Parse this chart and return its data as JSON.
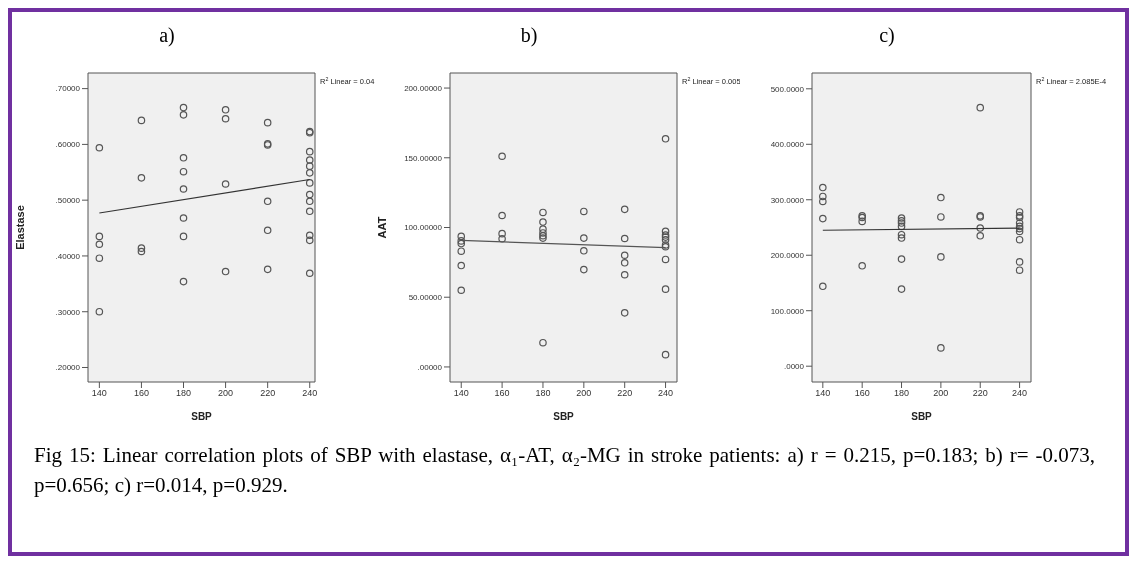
{
  "chart_data": [
    {
      "type": "scatter",
      "title": "a)",
      "xlabel": "SBP",
      "ylabel": "Elastase",
      "annotations": [
        "R$^{2}$ Linear = 0.04"
      ],
      "xlim": [
        134.6,
        242.5
      ],
      "xticks": [
        140,
        160,
        180,
        200,
        220,
        240
      ],
      "ylim": [
        0.174,
        0.728
      ],
      "yticks": [
        {
          "value": 0.2,
          "label": ".20000"
        },
        {
          "value": 0.3,
          "label": ".30000"
        },
        {
          "value": 0.4,
          "label": ".40000"
        },
        {
          "value": 0.5,
          "label": ".50000"
        },
        {
          "value": 0.6,
          "label": ".60000"
        },
        {
          "value": 0.7,
          "label": ".70000"
        }
      ],
      "series": [
        {
          "color": "#555555",
          "marker": "circle",
          "x": [
            140,
            140,
            140,
            140,
            140,
            160,
            160,
            160,
            160,
            180,
            180,
            180,
            180,
            180,
            180,
            180,
            180,
            200,
            200,
            200,
            200,
            220,
            220,
            220,
            220,
            220,
            220,
            240,
            240,
            240,
            240,
            240,
            240,
            240,
            240,
            240,
            240,
            240,
            240,
            240
          ],
          "values": [
            0.594,
            0.435,
            0.421,
            0.396,
            0.3,
            0.643,
            0.54,
            0.414,
            0.408,
            0.666,
            0.653,
            0.576,
            0.551,
            0.52,
            0.468,
            0.435,
            0.354,
            0.662,
            0.646,
            0.529,
            0.372,
            0.639,
            0.601,
            0.599,
            0.498,
            0.446,
            0.376,
            0.623,
            0.621,
            0.587,
            0.572,
            0.561,
            0.549,
            0.531,
            0.51,
            0.498,
            0.48,
            0.437,
            0.428,
            0.369
          ]
        },
        {
          "type": "line",
          "color": "#333333",
          "marker": "none",
          "line_style": "solid",
          "x": [
            140,
            240
          ],
          "values": [
            0.477,
            0.537
          ]
        }
      ]
    },
    {
      "type": "scatter",
      "title": "b)",
      "xlabel": "SBP",
      "ylabel": "AAT",
      "annotations": [
        "R$^{2}$ Linear = 0.005"
      ],
      "xlim": [
        134.5,
        245.6
      ],
      "xticks": [
        140,
        160,
        180,
        200,
        220,
        240
      ],
      "ylim": [
        -10.8,
        210.8
      ],
      "yticks": [
        {
          "value": 0,
          "label": ".00000"
        },
        {
          "value": 50,
          "label": "50.00000"
        },
        {
          "value": 100,
          "label": "100.00000"
        },
        {
          "value": 150,
          "label": "150.00000"
        },
        {
          "value": 200,
          "label": "200.00000"
        }
      ],
      "series": [
        {
          "color": "#555555",
          "marker": "circle",
          "x": [
            140,
            140,
            140,
            140,
            140,
            140,
            160,
            160,
            160,
            160,
            180,
            180,
            180,
            180,
            180,
            180,
            180,
            200,
            200,
            200,
            200,
            220,
            220,
            220,
            220,
            220,
            220,
            240,
            240,
            240,
            240,
            240,
            240,
            240,
            240,
            240,
            240
          ],
          "values": [
            93.6,
            90.4,
            88.5,
            83.0,
            72.7,
            55.0,
            151.1,
            108.6,
            95.6,
            91.9,
            110.8,
            103.9,
            98.8,
            96.1,
            94.1,
            92.4,
            17.4,
            111.5,
            92.4,
            83.3,
            69.8,
            113.0,
            92.1,
            80.1,
            74.7,
            66.1,
            38.8,
            163.6,
            97.3,
            94.6,
            93.1,
            91.2,
            87.5,
            86.2,
            77.1,
            55.8,
            8.8
          ]
        },
        {
          "type": "line",
          "color": "#555555",
          "marker": "none",
          "line_style": "solid",
          "x": [
            140,
            240
          ],
          "values": [
            90.7,
            85.5
          ]
        }
      ]
    },
    {
      "type": "scatter",
      "title": "c)",
      "xlabel": "SBP",
      "annotations": [
        "R$^{2}$ Linear = 2.085E-4",
        "Fig 15: Linear correlation plots of SBP with elastase, α₁-AT, α₂-MG in stroke patients: a) r = 0.215, p=0.183; b) r= -0.073, p=0.656; c) r=0.014, p=0.929."
      ],
      "xlim": [
        134.5,
        245.8
      ],
      "xticks": [
        140,
        160,
        180,
        200,
        220,
        240
      ],
      "ylim": [
        -28.5,
        528.5
      ],
      "yticks": [
        {
          "value": 0,
          "label": ".0000"
        },
        {
          "value": 100,
          "label": "100.0000"
        },
        {
          "value": 200,
          "label": "200.0000"
        },
        {
          "value": 300,
          "label": "300.0000"
        },
        {
          "value": 400,
          "label": "400.0000"
        },
        {
          "value": 500,
          "label": "500.0000"
        }
      ],
      "series": [
        {
          "color": "#555555",
          "marker": "circle",
          "x": [
            140,
            140,
            140,
            140,
            140,
            160,
            160,
            160,
            160,
            180,
            180,
            180,
            180,
            180,
            180,
            180,
            180,
            200,
            200,
            200,
            200,
            220,
            220,
            220,
            220,
            220,
            240,
            240,
            240,
            240,
            240,
            240,
            240,
            240,
            240,
            240
          ],
          "values": [
            322,
            306,
            297,
            266,
            144,
            271,
            268,
            261,
            181,
            267,
            262,
            258,
            252,
            237,
            231,
            193,
            139,
            304,
            269,
            197,
            33,
            466,
            271,
            269,
            249,
            235,
            278,
            271,
            268,
            258,
            252,
            248,
            243,
            228,
            188,
            173
          ]
        },
        {
          "type": "line",
          "color": "#333333",
          "marker": "none",
          "line_style": "solid",
          "x": [
            140,
            240
          ],
          "values": [
            245,
            249
          ]
        }
      ]
    }
  ]
}
